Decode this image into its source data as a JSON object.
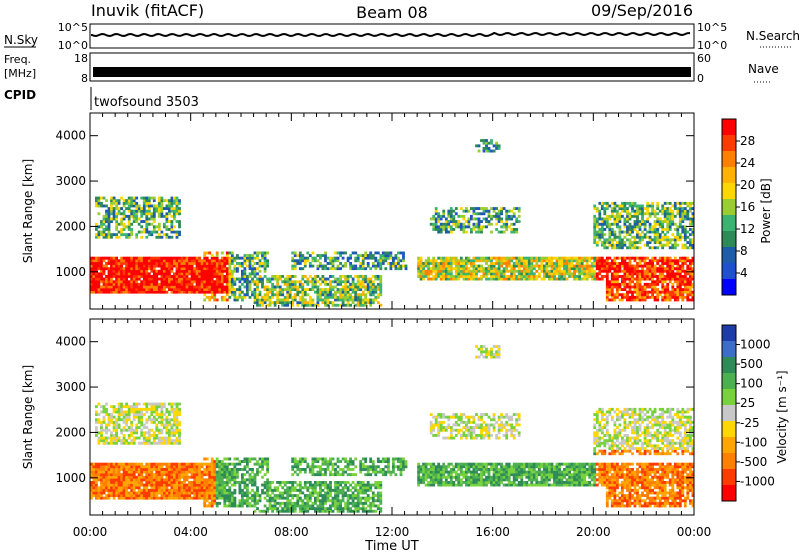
{
  "header": {
    "station": "Inuvik (fitACF)",
    "beam": "Beam 08",
    "date": "09/Sep/2016",
    "program": "twofsound 3503"
  },
  "top_panels": {
    "nsky_label": "N.Sky",
    "nsky_ticks": [
      "10^5",
      "10^0"
    ],
    "nsearch_label": "N.Search",
    "nsearch_ticks": [
      "10^5",
      "10^0"
    ],
    "freq_label_1": "Freq.",
    "freq_label_2": "[MHz]",
    "freq_ticks": [
      "18",
      "8"
    ],
    "nave_label": "Nave",
    "nave_ticks": [
      "60",
      "0"
    ],
    "cpid_label": "CPID"
  },
  "chart_data": [
    {
      "type": "heatmap",
      "name": "power",
      "ylabel": "Slant Range [km]",
      "xlabel": "",
      "xlim": [
        "00:00",
        "24:00"
      ],
      "ylim": [
        180,
        4500
      ],
      "y_ticks": [
        1000,
        2000,
        3000,
        4000
      ],
      "x_ticks": [
        "00:00",
        "04:00",
        "08:00",
        "12:00",
        "16:00",
        "20:00",
        "00:00"
      ],
      "colorbar": {
        "label": "Power [dB]",
        "ticks": [
          "28",
          "24",
          "20",
          "16",
          "12",
          "8",
          "4"
        ],
        "colors": [
          "#ff0000",
          "#ff3b00",
          "#ff7f00",
          "#ffb200",
          "#ffd700",
          "#9acd32",
          "#3cb371",
          "#2e8b57",
          "#1c5ca8",
          "#1e50d0",
          "#0000ff"
        ]
      }
    },
    {
      "type": "heatmap",
      "name": "velocity",
      "ylabel": "Slant Range [km]",
      "xlabel": "Time UT",
      "xlim": [
        "00:00",
        "24:00"
      ],
      "ylim": [
        180,
        4500
      ],
      "y_ticks": [
        1000,
        2000,
        3000,
        4000
      ],
      "x_ticks": [
        "00:00",
        "04:00",
        "08:00",
        "12:00",
        "16:00",
        "20:00",
        "00:00"
      ],
      "colorbar": {
        "label": "Velocity [m s⁻¹]",
        "ticks": [
          "1000",
          "500",
          "100",
          "25",
          "-25",
          "-100",
          "-500",
          "-1000"
        ],
        "colors": [
          "#1e3ca8",
          "#3c6ec8",
          "#2e8b57",
          "#4cb050",
          "#78d23c",
          "#c8c8c8",
          "#ffd700",
          "#ffa500",
          "#ff7f00",
          "#ff3b00",
          "#ff0000"
        ]
      }
    }
  ]
}
